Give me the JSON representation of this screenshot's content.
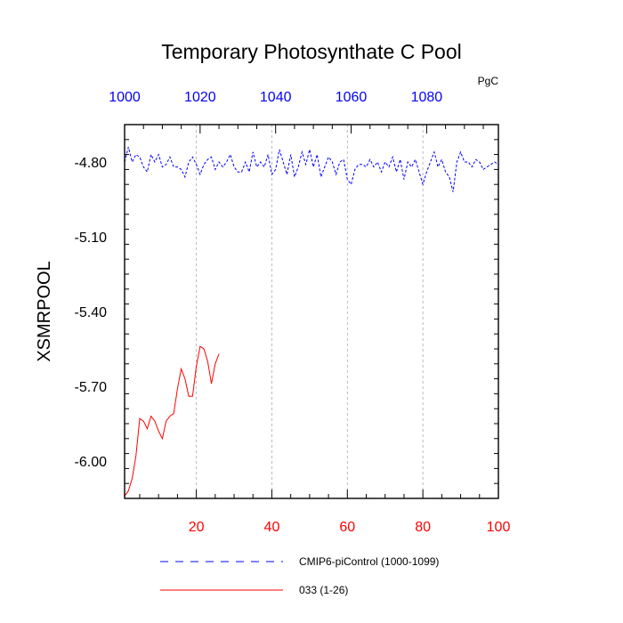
{
  "chart_data": {
    "type": "line",
    "title": "Temporary Photosynthate C Pool",
    "units": "PgC",
    "ylabel": "XSMRPOOL",
    "ylim": [
      -6.15,
      -4.65
    ],
    "yticks": [
      -4.8,
      -5.1,
      -5.4,
      -5.7,
      -6.0
    ],
    "ytick_labels": [
      "-4.80",
      "-5.10",
      "-5.40",
      "-5.70",
      "-6.00"
    ],
    "x_bottom": {
      "range": [
        1,
        100
      ],
      "ticks": [
        20,
        40,
        60,
        80,
        100
      ],
      "tick_labels": [
        "20",
        "40",
        "60",
        "80",
        "100"
      ],
      "color": "#ff0000"
    },
    "x_top": {
      "range": [
        1000,
        1099
      ],
      "ticks": [
        1000,
        1020,
        1040,
        1060,
        1080
      ],
      "tick_labels": [
        "1000",
        "1020",
        "1040",
        "1060",
        "1080"
      ],
      "color": "#0000ff"
    },
    "grid": "vertical dashed at major ticks",
    "series": [
      {
        "name": "CMIP6-piControl (1000-1099)",
        "color": "#0000ff",
        "style": "dashed",
        "x": [
          1,
          2,
          3,
          4,
          5,
          6,
          7,
          8,
          9,
          10,
          11,
          12,
          13,
          14,
          15,
          16,
          17,
          18,
          19,
          20,
          21,
          22,
          23,
          24,
          25,
          26,
          27,
          28,
          29,
          30,
          31,
          32,
          33,
          34,
          35,
          36,
          37,
          38,
          39,
          40,
          41,
          42,
          43,
          44,
          45,
          46,
          47,
          48,
          49,
          50,
          51,
          52,
          53,
          54,
          55,
          56,
          57,
          58,
          59,
          60,
          61,
          62,
          63,
          64,
          65,
          66,
          67,
          68,
          69,
          70,
          71,
          72,
          73,
          74,
          75,
          76,
          77,
          78,
          79,
          80,
          81,
          82,
          83,
          84,
          85,
          86,
          87,
          88,
          89,
          90,
          91,
          92,
          93,
          94,
          95,
          96,
          97,
          98,
          99,
          100
        ],
        "values": [
          -4.8,
          -4.74,
          -4.8,
          -4.77,
          -4.78,
          -4.82,
          -4.84,
          -4.77,
          -4.8,
          -4.77,
          -4.82,
          -4.81,
          -4.78,
          -4.82,
          -4.82,
          -4.83,
          -4.86,
          -4.8,
          -4.78,
          -4.81,
          -4.85,
          -4.81,
          -4.79,
          -4.78,
          -4.83,
          -4.8,
          -4.82,
          -4.8,
          -4.77,
          -4.82,
          -4.84,
          -4.84,
          -4.8,
          -4.84,
          -4.76,
          -4.82,
          -4.8,
          -4.82,
          -4.77,
          -4.85,
          -4.83,
          -4.75,
          -4.8,
          -4.85,
          -4.77,
          -4.86,
          -4.82,
          -4.76,
          -4.81,
          -4.75,
          -4.82,
          -4.77,
          -4.86,
          -4.82,
          -4.78,
          -4.8,
          -4.85,
          -4.8,
          -4.79,
          -4.87,
          -4.89,
          -4.83,
          -4.81,
          -4.81,
          -4.82,
          -4.79,
          -4.82,
          -4.8,
          -4.84,
          -4.8,
          -4.82,
          -4.78,
          -4.84,
          -4.79,
          -4.87,
          -4.8,
          -4.82,
          -4.79,
          -4.84,
          -4.89,
          -4.84,
          -4.8,
          -4.76,
          -4.82,
          -4.79,
          -4.84,
          -4.86,
          -4.92,
          -4.8,
          -4.76,
          -4.8,
          -4.8,
          -4.82,
          -4.79,
          -4.8,
          -4.83,
          -4.82,
          -4.81,
          -4.8,
          -4.81
        ]
      },
      {
        "name": "033 (1-26)",
        "color": "#ff0000",
        "style": "solid",
        "x": [
          1,
          2,
          3,
          4,
          5,
          6,
          7,
          8,
          9,
          10,
          11,
          12,
          13,
          14,
          15,
          16,
          17,
          18,
          19,
          20,
          21,
          22,
          23,
          24,
          25,
          26
        ],
        "values": [
          -6.14,
          -6.12,
          -6.07,
          -5.98,
          -5.83,
          -5.84,
          -5.87,
          -5.82,
          -5.84,
          -5.88,
          -5.91,
          -5.84,
          -5.82,
          -5.81,
          -5.71,
          -5.63,
          -5.67,
          -5.74,
          -5.74,
          -5.62,
          -5.54,
          -5.55,
          -5.6,
          -5.69,
          -5.61,
          -5.57
        ]
      }
    ]
  }
}
